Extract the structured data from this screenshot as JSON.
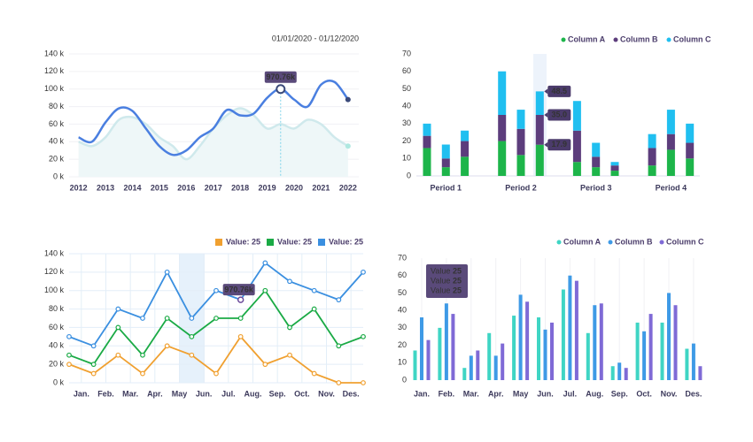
{
  "chart_data": [
    {
      "type": "line",
      "smooth": true,
      "date_range": "01/01/2020 - 01/12/2020",
      "annotation": "970.76k",
      "x": [
        2012,
        2012.5,
        2013,
        2013.5,
        2014,
        2014.5,
        2015,
        2015.5,
        2016,
        2016.5,
        2017,
        2017.5,
        2018,
        2018.5,
        2019,
        2019.5,
        2020,
        2020.5,
        2021,
        2021.5,
        2022
      ],
      "xlim": [
        2011.65,
        2022.4
      ],
      "xticks": [
        2012,
        2013,
        2014,
        2015,
        2016,
        2017,
        2018,
        2019,
        2020,
        2021,
        2022
      ],
      "ylim": [
        0,
        140
      ],
      "yticks": [
        {
          "value": 0,
          "label": "0 k"
        },
        {
          "value": 20,
          "label": "20 k"
        },
        {
          "value": 40,
          "label": "40 k"
        },
        {
          "value": 60,
          "label": "60 k"
        },
        {
          "value": 80,
          "label": "80 k"
        },
        {
          "value": 100,
          "label": "100 k"
        },
        {
          "value": 120,
          "label": "120 k"
        },
        {
          "value": 140,
          "label": "140 k"
        }
      ],
      "grid": true,
      "series": [
        {
          "color": "#4a7fe0",
          "values": [
            45,
            40,
            62,
            78,
            75,
            55,
            35,
            25,
            30,
            45,
            55,
            76,
            70,
            72,
            90,
            100,
            88,
            80,
            105,
            108,
            88
          ]
        },
        {
          "color": "#cfe9ec",
          "area": true,
          "values": [
            40,
            35,
            45,
            65,
            68,
            60,
            45,
            35,
            20,
            35,
            55,
            70,
            78,
            70,
            55,
            60,
            55,
            65,
            60,
            45,
            35
          ]
        }
      ]
    },
    {
      "type": "stacked_bar",
      "categories": [
        null,
        "Period 1",
        null,
        null,
        "Period 2",
        null,
        null,
        "Period 3",
        null,
        null,
        "Period 4",
        null
      ],
      "ylim": [
        0,
        70
      ],
      "yticks": [
        0,
        10,
        20,
        30,
        40,
        50,
        60,
        70
      ],
      "legend": "top-right",
      "annotations": [
        "48.5",
        "35.0",
        "17.9"
      ],
      "series": [
        {
          "name": "Column A",
          "color": "#1db54a",
          "values": [
            16,
            5,
            11,
            20,
            12,
            17.9,
            8,
            5,
            3,
            6,
            15,
            10
          ]
        },
        {
          "name": "Column B",
          "color": "#5c3d7c",
          "values": [
            7,
            5,
            9,
            15,
            15,
            17.1,
            18,
            6,
            3,
            10,
            9,
            9
          ]
        },
        {
          "name": "Column C",
          "color": "#20bff0",
          "values": [
            7,
            8,
            6,
            25,
            11,
            13.5,
            17,
            8,
            2,
            8,
            14,
            11
          ]
        }
      ]
    },
    {
      "type": "line",
      "markers": true,
      "annotation": "970.76k",
      "x": [
        0,
        1,
        2,
        3,
        4,
        5,
        6,
        7,
        8,
        9,
        10,
        11,
        12
      ],
      "xlim": [
        0,
        12
      ],
      "xticks": [
        {
          "value": 0.5,
          "label": "Jan."
        },
        {
          "value": 1.5,
          "label": "Feb."
        },
        {
          "value": 2.5,
          "label": "Mar."
        },
        {
          "value": 3.5,
          "label": "Apr."
        },
        {
          "value": 4.5,
          "label": "May"
        },
        {
          "value": 5.5,
          "label": "Jun."
        },
        {
          "value": 6.5,
          "label": "Jul."
        },
        {
          "value": 7.5,
          "label": "Aug."
        },
        {
          "value": 8.5,
          "label": "Sep."
        },
        {
          "value": 9.5,
          "label": "Oct."
        },
        {
          "value": 10.5,
          "label": "Nov."
        },
        {
          "value": 11.5,
          "label": "Des."
        }
      ],
      "ylim": [
        0,
        140
      ],
      "yticks": [
        {
          "value": 0,
          "label": "0 k"
        },
        {
          "value": 20,
          "label": "20 k"
        },
        {
          "value": 40,
          "label": "40 k"
        },
        {
          "value": 60,
          "label": "60 k"
        },
        {
          "value": 80,
          "label": "80 k"
        },
        {
          "value": 100,
          "label": "100 k"
        },
        {
          "value": 120,
          "label": "120 k"
        },
        {
          "value": 140,
          "label": "140 k"
        }
      ],
      "grid": true,
      "legend": "top-right",
      "series": [
        {
          "name": "Value: 25",
          "color": "#f0a030",
          "values": [
            20,
            10,
            30,
            10,
            40,
            30,
            10,
            50,
            20,
            30,
            10,
            0,
            0
          ]
        },
        {
          "name": "Value: 25",
          "color": "#1aaa45",
          "values": [
            30,
            20,
            60,
            30,
            70,
            50,
            70,
            70,
            100,
            60,
            80,
            40,
            50
          ]
        },
        {
          "name": "Value: 25",
          "color": "#3a8fe0",
          "values": [
            50,
            40,
            80,
            70,
            120,
            70,
            100,
            90,
            130,
            110,
            100,
            90,
            120
          ]
        }
      ]
    },
    {
      "type": "grouped_bar",
      "categories": [
        "Jan.",
        "Feb.",
        "Mar.",
        "Apr.",
        "May",
        "Jun.",
        "Jul.",
        "Aug.",
        "Sep.",
        "Oct.",
        "Nov.",
        "Des."
      ],
      "ylim": [
        0,
        70
      ],
      "yticks": [
        0,
        10,
        20,
        30,
        40,
        50,
        60,
        70
      ],
      "legend": "top-right",
      "tooltip": [
        {
          "label": "Value",
          "value": 25
        },
        {
          "label": "Value",
          "value": 25
        },
        {
          "label": "Value",
          "value": 25
        }
      ],
      "series": [
        {
          "name": "Column A",
          "color": "#3fd5c4",
          "values": [
            17,
            30,
            7,
            27,
            37,
            36,
            52,
            27,
            8,
            33,
            33,
            18
          ]
        },
        {
          "name": "Column B",
          "color": "#3e9ae6",
          "values": [
            36,
            44,
            14,
            14,
            49,
            29,
            60,
            43,
            10,
            28,
            50,
            21
          ]
        },
        {
          "name": "Column C",
          "color": "#7f6ad6",
          "values": [
            23,
            38,
            17,
            21,
            45,
            33,
            57,
            44,
            7,
            38,
            43,
            8
          ]
        }
      ]
    }
  ]
}
